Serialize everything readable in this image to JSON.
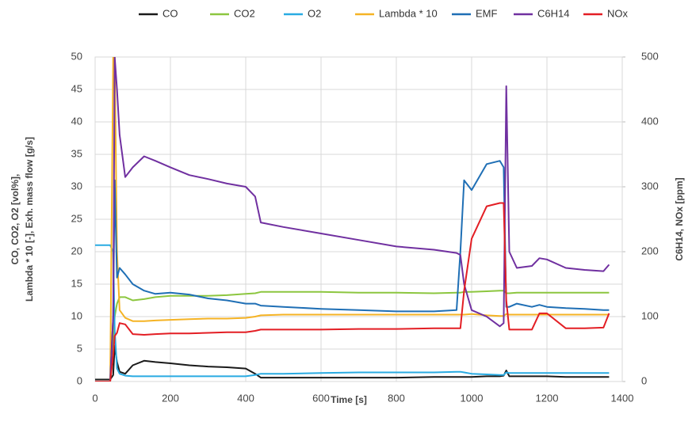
{
  "chart_data": {
    "type": "line",
    "xlabel": "Time [s]",
    "ylabel": [
      "CO, CO2, O2 [vol%],",
      "Lambda * 10 [-], Exh. mass flow [g/s]"
    ],
    "y2label": "C6H14, NOx [ppm]",
    "xlim": [
      0,
      1400
    ],
    "xticks": [
      0,
      200,
      400,
      600,
      800,
      1000,
      1200,
      1400
    ],
    "ylim": [
      0,
      50
    ],
    "yticks": [
      0,
      5,
      10,
      15,
      20,
      25,
      30,
      35,
      40,
      45,
      50
    ],
    "y2lim": [
      0,
      500
    ],
    "y2ticks": [
      0,
      100,
      200,
      300,
      400,
      500
    ],
    "grid": true,
    "legend": "top",
    "x": [
      0,
      40,
      48,
      52,
      58,
      65,
      80,
      100,
      130,
      160,
      200,
      250,
      300,
      350,
      400,
      425,
      440,
      500,
      600,
      700,
      800,
      900,
      960,
      970,
      980,
      1000,
      1040,
      1075,
      1085,
      1092,
      1100,
      1120,
      1160,
      1180,
      1200,
      1250,
      1300,
      1350,
      1365
    ],
    "series": [
      {
        "name": "CO",
        "color": "#1a1a1a",
        "values": [
          0.3,
          0.3,
          1,
          5.5,
          3,
          1.5,
          1.2,
          2.5,
          3.2,
          3,
          2.8,
          2.5,
          2.3,
          2.2,
          2,
          1.2,
          0.6,
          0.6,
          0.6,
          0.6,
          0.6,
          0.7,
          0.7,
          0.7,
          0.7,
          0.7,
          0.8,
          0.8,
          0.9,
          1.7,
          0.8,
          0.8,
          0.8,
          0.8,
          0.8,
          0.7,
          0.7,
          0.7,
          0.7
        ]
      },
      {
        "name": "CO2",
        "color": "#8cc63f",
        "values": [
          0,
          0,
          5,
          10,
          12,
          13,
          13,
          12.5,
          12.7,
          13,
          13.2,
          13.2,
          13.2,
          13.3,
          13.5,
          13.6,
          13.8,
          13.8,
          13.8,
          13.7,
          13.7,
          13.6,
          13.7,
          13.7,
          13.8,
          13.8,
          13.9,
          14,
          14,
          13.6,
          13.6,
          13.7,
          13.7,
          13.7,
          13.7,
          13.7,
          13.7,
          13.7,
          13.7
        ]
      },
      {
        "name": "O2",
        "color": "#29abe2",
        "values": [
          21,
          21,
          20,
          8,
          2,
          1.2,
          0.9,
          0.8,
          0.8,
          0.8,
          0.8,
          0.8,
          0.8,
          0.8,
          0.8,
          1,
          1.2,
          1.2,
          1.3,
          1.4,
          1.4,
          1.4,
          1.5,
          1.5,
          1.4,
          1.2,
          1.1,
          1,
          1,
          1.4,
          1.3,
          1.3,
          1.3,
          1.3,
          1.3,
          1.3,
          1.3,
          1.3,
          1.3
        ]
      },
      {
        "name": "Lambda * 10",
        "color": "#f5b324",
        "values": [
          0,
          0,
          50,
          50,
          20,
          11,
          9.8,
          9.3,
          9.3,
          9.4,
          9.5,
          9.6,
          9.7,
          9.7,
          9.8,
          10,
          10.2,
          10.3,
          10.3,
          10.3,
          10.3,
          10.3,
          10.3,
          10.3,
          10.3,
          10.4,
          10.2,
          10.1,
          10.1,
          10.4,
          10.3,
          10.3,
          10.3,
          10.3,
          10.3,
          10.3,
          10.3,
          10.3,
          10.3
        ]
      },
      {
        "name": "EMF",
        "color": "#1f6fb5",
        "values": [
          0,
          0,
          10,
          31,
          16,
          17.5,
          16.5,
          15,
          14,
          13.5,
          13.7,
          13.4,
          12.8,
          12.5,
          12,
          12,
          11.7,
          11.5,
          11.2,
          11,
          10.8,
          10.8,
          11,
          20,
          31,
          29.5,
          33.5,
          34,
          33,
          11.5,
          11.5,
          12,
          11.5,
          11.8,
          11.5,
          11.3,
          11.2,
          11,
          11
        ]
      },
      {
        "name": "C6H14",
        "color": "#7030a0",
        "axis": "y2",
        "values": [
          0,
          0,
          100,
          500,
          450,
          380,
          315,
          330,
          347,
          340,
          330,
          318,
          312,
          305,
          300,
          285,
          245,
          238,
          228,
          218,
          208,
          203,
          198,
          195,
          150,
          110,
          100,
          85,
          90,
          455,
          200,
          175,
          178,
          190,
          188,
          175,
          172,
          170,
          180
        ]
      },
      {
        "name": "NOx",
        "color": "#e31e24",
        "axis": "y2",
        "values": [
          0,
          0,
          40,
          70,
          75,
          90,
          88,
          73,
          72,
          73,
          74,
          74,
          75,
          76,
          76,
          78,
          80,
          80,
          80,
          81,
          81,
          82,
          82,
          82,
          140,
          220,
          270,
          275,
          275,
          125,
          80,
          80,
          80,
          105,
          105,
          82,
          82,
          83,
          105
        ]
      }
    ]
  }
}
